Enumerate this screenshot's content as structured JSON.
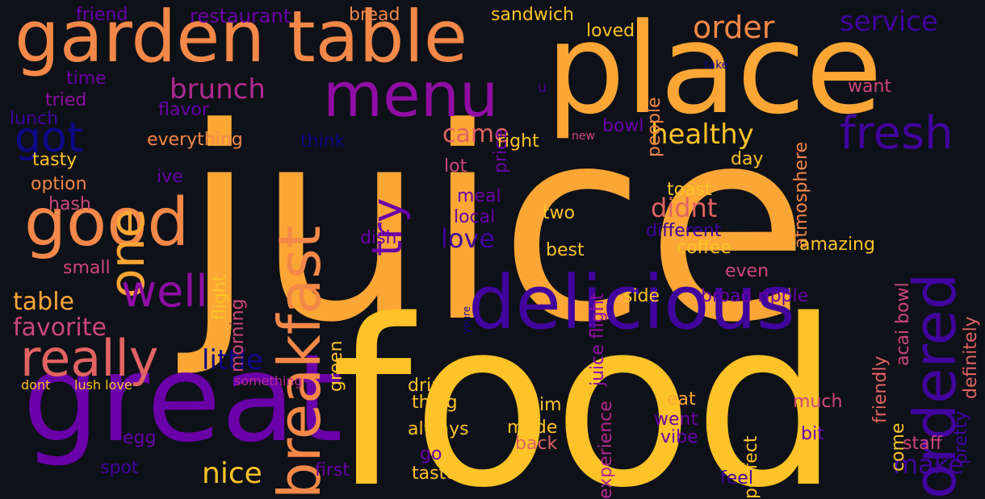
{
  "palette": {
    "background": "#0e1117",
    "yellow": "#fdc328",
    "light_orange": "#fca636",
    "orange": "#f48849",
    "salmon": "#e16462",
    "pink": "#cc4778",
    "magenta": "#b12a90",
    "purple": "#8f0da4",
    "violet": "#6a00a8",
    "indigo": "#41049d",
    "navy": "#0d0887"
  },
  "words": [
    {
      "text": "juice",
      "weight": 1.0,
      "color": "light_orange"
    },
    {
      "text": "food",
      "weight": 0.93,
      "color": "yellow"
    },
    {
      "text": "place",
      "weight": 0.62,
      "color": "light_orange"
    },
    {
      "text": "great",
      "weight": 0.6,
      "color": "violet"
    },
    {
      "text": "delicious",
      "weight": 0.35,
      "color": "indigo"
    },
    {
      "text": "breakfast",
      "weight": 0.33,
      "color": "orange"
    },
    {
      "text": "garden table",
      "weight": 0.32,
      "color": "orange"
    },
    {
      "text": "good",
      "weight": 0.3,
      "color": "orange"
    },
    {
      "text": "menu",
      "weight": 0.28,
      "color": "purple"
    },
    {
      "text": "ordered",
      "weight": 0.27,
      "color": "indigo"
    },
    {
      "text": "one",
      "weight": 0.24,
      "color": "light_orange"
    },
    {
      "text": "really",
      "weight": 0.2,
      "color": "salmon"
    },
    {
      "text": "fresh",
      "weight": 0.19,
      "color": "indigo"
    },
    {
      "text": "try",
      "weight": 0.18,
      "color": "violet"
    },
    {
      "text": "well",
      "weight": 0.18,
      "color": "purple"
    },
    {
      "text": "got",
      "weight": 0.17,
      "color": "navy"
    },
    {
      "text": "order",
      "weight": 0.13,
      "color": "orange"
    },
    {
      "text": "make",
      "weight": 0.12,
      "color": "indigo"
    },
    {
      "text": "service",
      "weight": 0.12,
      "color": "indigo"
    },
    {
      "text": "healthy",
      "weight": 0.12,
      "color": "yellow"
    },
    {
      "text": "brunch",
      "weight": 0.12,
      "color": "magenta"
    },
    {
      "text": "table",
      "weight": 0.12,
      "color": "light_orange"
    },
    {
      "text": "nice",
      "weight": 0.12,
      "color": "yellow"
    },
    {
      "text": "favorite",
      "weight": 0.11,
      "color": "pink"
    },
    {
      "text": "love",
      "weight": 0.11,
      "color": "indigo"
    },
    {
      "text": "little",
      "weight": 0.11,
      "color": "navy"
    },
    {
      "text": "didnt",
      "weight": 0.11,
      "color": "salmon"
    },
    {
      "text": "came",
      "weight": 0.1,
      "color": "salmon"
    },
    {
      "text": "everything",
      "weight": 0.07,
      "color": "orange"
    },
    {
      "text": "sandwich",
      "weight": 0.07,
      "color": "yellow"
    },
    {
      "text": "restaurant",
      "weight": 0.07,
      "color": "violet"
    },
    {
      "text": "friend",
      "weight": 0.07,
      "color": "violet"
    },
    {
      "text": "bread",
      "weight": 0.07,
      "color": "orange"
    },
    {
      "text": "juice flight",
      "weight": 0.07,
      "color": "purple"
    },
    {
      "text": "tasty",
      "weight": 0.07,
      "color": "yellow"
    },
    {
      "text": "option",
      "weight": 0.07,
      "color": "orange"
    },
    {
      "text": "hash",
      "weight": 0.07,
      "color": "pink"
    },
    {
      "text": "small",
      "weight": 0.07,
      "color": "pink"
    },
    {
      "text": "time",
      "weight": 0.07,
      "color": "violet"
    },
    {
      "text": "tried",
      "weight": 0.07,
      "color": "purple"
    },
    {
      "text": "lunch",
      "weight": 0.07,
      "color": "indigo"
    },
    {
      "text": "flavor",
      "weight": 0.07,
      "color": "violet"
    },
    {
      "text": "atmosphere",
      "weight": 0.07,
      "color": "orange"
    },
    {
      "text": "people",
      "weight": 0.07,
      "color": "orange"
    },
    {
      "text": "loved",
      "weight": 0.07,
      "color": "yellow"
    },
    {
      "text": "price",
      "weight": 0.07,
      "color": "violet"
    },
    {
      "text": "want",
      "weight": 0.07,
      "color": "pink"
    },
    {
      "text": "bowl",
      "weight": 0.07,
      "color": "violet"
    },
    {
      "text": "right",
      "weight": 0.07,
      "color": "yellow"
    },
    {
      "text": "think",
      "weight": 0.07,
      "color": "navy"
    },
    {
      "text": "lot",
      "weight": 0.07,
      "color": "pink"
    },
    {
      "text": "day",
      "weight": 0.07,
      "color": "yellow"
    },
    {
      "text": "toast",
      "weight": 0.07,
      "color": "yellow"
    },
    {
      "text": "meal",
      "weight": 0.07,
      "color": "violet"
    },
    {
      "text": "local",
      "weight": 0.07,
      "color": "violet"
    },
    {
      "text": "two",
      "weight": 0.07,
      "color": "yellow"
    },
    {
      "text": "dish",
      "weight": 0.07,
      "color": "violet"
    },
    {
      "text": "best",
      "weight": 0.07,
      "color": "yellow"
    },
    {
      "text": "coffee",
      "weight": 0.07,
      "color": "yellow"
    },
    {
      "text": "different",
      "weight": 0.07,
      "color": "indigo"
    },
    {
      "text": "amazing",
      "weight": 0.07,
      "color": "yellow"
    },
    {
      "text": "even",
      "weight": 0.07,
      "color": "pink"
    },
    {
      "text": "acai bowl",
      "weight": 0.07,
      "color": "pink"
    },
    {
      "text": "definitely",
      "weight": 0.07,
      "color": "salmon"
    },
    {
      "text": "broad ripple",
      "weight": 0.07,
      "color": "violet"
    },
    {
      "text": "side",
      "weight": 0.07,
      "color": "yellow"
    },
    {
      "text": "friendly",
      "weight": 0.07,
      "color": "salmon"
    },
    {
      "text": "flight",
      "weight": 0.07,
      "color": "yellow"
    },
    {
      "text": "morning",
      "weight": 0.07,
      "color": "pink"
    },
    {
      "text": "green",
      "weight": 0.07,
      "color": "yellow"
    },
    {
      "text": "pretty",
      "weight": 0.07,
      "color": "indigo"
    },
    {
      "text": "drink",
      "weight": 0.07,
      "color": "yellow"
    },
    {
      "text": "thing",
      "weight": 0.07,
      "color": "yellow"
    },
    {
      "text": "always",
      "weight": 0.07,
      "color": "yellow"
    },
    {
      "text": "im",
      "weight": 0.07,
      "color": "yellow"
    },
    {
      "text": "made",
      "weight": 0.07,
      "color": "yellow"
    },
    {
      "text": "back",
      "weight": 0.07,
      "color": "salmon"
    },
    {
      "text": "go",
      "weight": 0.07,
      "color": "violet"
    },
    {
      "text": "taste",
      "weight": 0.07,
      "color": "yellow"
    },
    {
      "text": "first",
      "weight": 0.07,
      "color": "violet"
    },
    {
      "text": "experience",
      "weight": 0.07,
      "color": "magenta"
    },
    {
      "text": "perfect",
      "weight": 0.07,
      "color": "yellow"
    },
    {
      "text": "eat",
      "weight": 0.07,
      "color": "light_orange"
    },
    {
      "text": "went",
      "weight": 0.07,
      "color": "violet"
    },
    {
      "text": "vibe",
      "weight": 0.07,
      "color": "violet"
    },
    {
      "text": "much",
      "weight": 0.07,
      "color": "pink"
    },
    {
      "text": "bit",
      "weight": 0.07,
      "color": "violet"
    },
    {
      "text": "come",
      "weight": 0.07,
      "color": "yellow"
    },
    {
      "text": "staff",
      "weight": 0.07,
      "color": "pink"
    },
    {
      "text": "feel",
      "weight": 0.07,
      "color": "indigo"
    },
    {
      "text": "egg",
      "weight": 0.07,
      "color": "violet"
    },
    {
      "text": "spot",
      "weight": 0.07,
      "color": "indigo"
    },
    {
      "text": "ive",
      "weight": 0.07,
      "color": "violet"
    },
    {
      "text": "dont",
      "weight": 0.04,
      "color": "yellow"
    },
    {
      "text": "lush love",
      "weight": 0.04,
      "color": "yellow"
    },
    {
      "text": "something",
      "weight": 0.04,
      "color": "magenta"
    },
    {
      "text": "youre",
      "weight": 0.03,
      "color": "navy"
    },
    {
      "text": "new",
      "weight": 0.03,
      "color": "pink"
    },
    {
      "text": "take",
      "weight": 0.03,
      "color": "navy"
    },
    {
      "text": "u",
      "weight": 0.03,
      "color": "indigo"
    }
  ]
}
